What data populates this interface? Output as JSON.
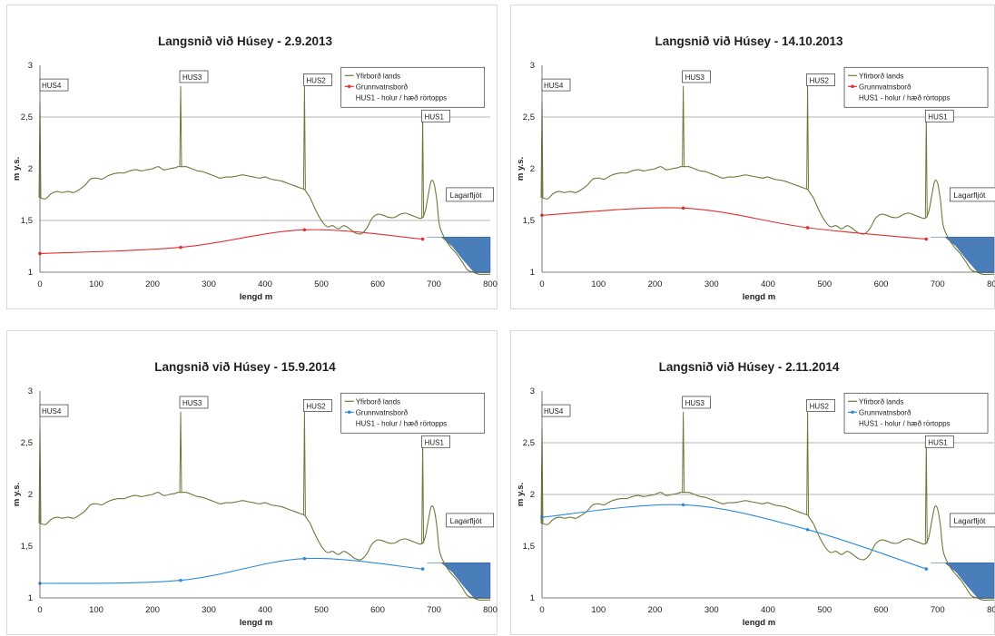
{
  "chart_data": [
    {
      "type": "line",
      "title": "Langsnið við Húsey  - 2.9.2013",
      "xlabel": "lengd m",
      "ylabel": "m y.s.",
      "xlim": [
        0,
        800
      ],
      "ylim": [
        1,
        3
      ],
      "x_ticks": [
        "0",
        "100",
        "200",
        "300",
        "400",
        "500",
        "600",
        "700",
        "800"
      ],
      "y_ticks": [
        "1",
        "1,5",
        "2",
        "2,5",
        "3"
      ],
      "legend": [
        "Yfirborð lands",
        "Grunnvatnsborð",
        "HUS1 - holur / hæð rörtopps"
      ],
      "legend_position": "top-right",
      "groundwater_color": "#e03030",
      "groundwater": {
        "x": [
          0,
          250,
          470,
          680
        ],
        "y": [
          1.18,
          1.24,
          1.41,
          1.32
        ]
      },
      "ref_lines": [
        2.5,
        1.5
      ],
      "wells": [
        {
          "name": "HUS4",
          "x": 0,
          "top": 2.65
        },
        {
          "name": "HUS3",
          "x": 250,
          "top": 2.8
        },
        {
          "name": "HUS2",
          "x": 470,
          "top": 2.8
        },
        {
          "name": "HUS1",
          "x": 680,
          "top": 2.52
        }
      ],
      "river_label": "Lagarfljót"
    },
    {
      "type": "line",
      "title": "Langsnið við Húsey  - 14.10.2013",
      "xlabel": "lengd m",
      "ylabel": "m y.s.",
      "xlim": [
        0,
        800
      ],
      "ylim": [
        1,
        3
      ],
      "x_ticks": [
        "0",
        "100",
        "200",
        "300",
        "400",
        "500",
        "600",
        "700",
        "800"
      ],
      "y_ticks": [
        "1",
        "1,5",
        "2",
        "2,5",
        "3"
      ],
      "legend": [
        "Yfirborð lands",
        "Grunnvatnsborð",
        "HUS1 - holur / hæð rörtopps"
      ],
      "legend_position": "top-right",
      "groundwater_color": "#e03030",
      "groundwater": {
        "x": [
          0,
          250,
          470,
          680
        ],
        "y": [
          1.55,
          1.62,
          1.43,
          1.32
        ]
      },
      "ref_lines": [
        2.5
      ],
      "wells": [
        {
          "name": "HUS4",
          "x": 0,
          "top": 2.65
        },
        {
          "name": "HUS3",
          "x": 250,
          "top": 2.8
        },
        {
          "name": "HUS2",
          "x": 470,
          "top": 2.8
        },
        {
          "name": "HUS1",
          "x": 680,
          "top": 2.52
        }
      ],
      "river_label": "Lagarfljót"
    },
    {
      "type": "line",
      "title": "Langsnið við Húsey  - 15.9.2014",
      "xlabel": "lengd m",
      "ylabel": "m y.s.",
      "xlim": [
        0,
        800
      ],
      "ylim": [
        1,
        3
      ],
      "x_ticks": [
        "0",
        "100",
        "200",
        "300",
        "400",
        "500",
        "600",
        "700",
        "800"
      ],
      "y_ticks": [
        "1",
        "1,5",
        "2",
        "2,5",
        "3"
      ],
      "legend": [
        "Yfirborð lands",
        "Grunnvatnsborð",
        "HUS1 - holur / hæð rörtopps"
      ],
      "legend_position": "top-right",
      "groundwater_color": "#2b8cd8",
      "groundwater": {
        "x": [
          0,
          250,
          470,
          680
        ],
        "y": [
          1.14,
          1.17,
          1.38,
          1.28
        ]
      },
      "ref_lines": [],
      "wells": [
        {
          "name": "HUS4",
          "x": 0,
          "top": 2.65
        },
        {
          "name": "HUS3",
          "x": 250,
          "top": 2.8
        },
        {
          "name": "HUS2",
          "x": 470,
          "top": 2.8
        },
        {
          "name": "HUS1",
          "x": 680,
          "top": 2.52
        }
      ],
      "river_label": "Lagarfljót"
    },
    {
      "type": "line",
      "title": "Langsnið við Húsey  - 2.11.2014",
      "xlabel": "lengd m",
      "ylabel": "m y.s.",
      "xlim": [
        0,
        800
      ],
      "ylim": [
        1,
        3
      ],
      "x_ticks": [
        "0",
        "100",
        "200",
        "300",
        "400",
        "500",
        "600",
        "700",
        "800"
      ],
      "y_ticks": [
        "1",
        "1,5",
        "2",
        "2,5",
        "3"
      ],
      "legend": [
        "Yfirborð lands",
        "Grunnvatnsborð",
        "HUS1 - holur / hæð rörtopps"
      ],
      "legend_position": "top-right",
      "groundwater_color": "#2b8cd8",
      "groundwater": {
        "x": [
          0,
          250,
          470,
          680
        ],
        "y": [
          1.78,
          1.9,
          1.66,
          1.28
        ]
      },
      "ref_lines": [
        2.5,
        2.0
      ],
      "wells": [
        {
          "name": "HUS4",
          "x": 0,
          "top": 2.65
        },
        {
          "name": "HUS3",
          "x": 250,
          "top": 2.8
        },
        {
          "name": "HUS2",
          "x": 470,
          "top": 2.8
        },
        {
          "name": "HUS1",
          "x": 680,
          "top": 2.52
        }
      ],
      "river_label": "Lagarfljót"
    }
  ],
  "ground_profile": {
    "x": [
      0,
      10,
      20,
      30,
      40,
      50,
      60,
      70,
      80,
      90,
      100,
      110,
      120,
      130,
      140,
      150,
      160,
      170,
      180,
      190,
      200,
      210,
      220,
      230,
      240,
      245,
      250,
      255,
      260,
      270,
      280,
      290,
      300,
      310,
      320,
      330,
      340,
      350,
      360,
      370,
      380,
      390,
      400,
      410,
      420,
      430,
      440,
      450,
      460,
      465,
      470,
      475,
      480,
      490,
      500,
      510,
      520,
      530,
      540,
      550,
      560,
      570,
      580,
      590,
      600,
      610,
      620,
      630,
      640,
      650,
      660,
      670,
      675,
      680,
      685,
      690,
      695,
      700,
      705,
      710,
      720,
      730,
      740,
      750,
      760,
      770,
      780,
      790,
      800
    ],
    "y": [
      1.72,
      1.71,
      1.76,
      1.78,
      1.77,
      1.78,
      1.77,
      1.8,
      1.84,
      1.9,
      1.91,
      1.9,
      1.93,
      1.95,
      1.96,
      1.96,
      1.98,
      1.99,
      1.98,
      1.99,
      2.0,
      2.02,
      1.99,
      2.0,
      2.01,
      2.02,
      2.02,
      2.02,
      2.02,
      2.0,
      1.98,
      1.97,
      1.95,
      1.93,
      1.91,
      1.92,
      1.92,
      1.93,
      1.94,
      1.93,
      1.92,
      1.91,
      1.92,
      1.9,
      1.89,
      1.88,
      1.86,
      1.84,
      1.82,
      1.81,
      1.8,
      1.76,
      1.72,
      1.6,
      1.5,
      1.44,
      1.45,
      1.42,
      1.45,
      1.42,
      1.38,
      1.37,
      1.42,
      1.52,
      1.56,
      1.55,
      1.53,
      1.53,
      1.56,
      1.57,
      1.55,
      1.53,
      1.52,
      1.53,
      1.6,
      1.75,
      1.88,
      1.86,
      1.7,
      1.45,
      1.32,
      1.24,
      1.18,
      1.1,
      1.02,
      1.0,
      0.98,
      0.98,
      0.98
    ]
  }
}
